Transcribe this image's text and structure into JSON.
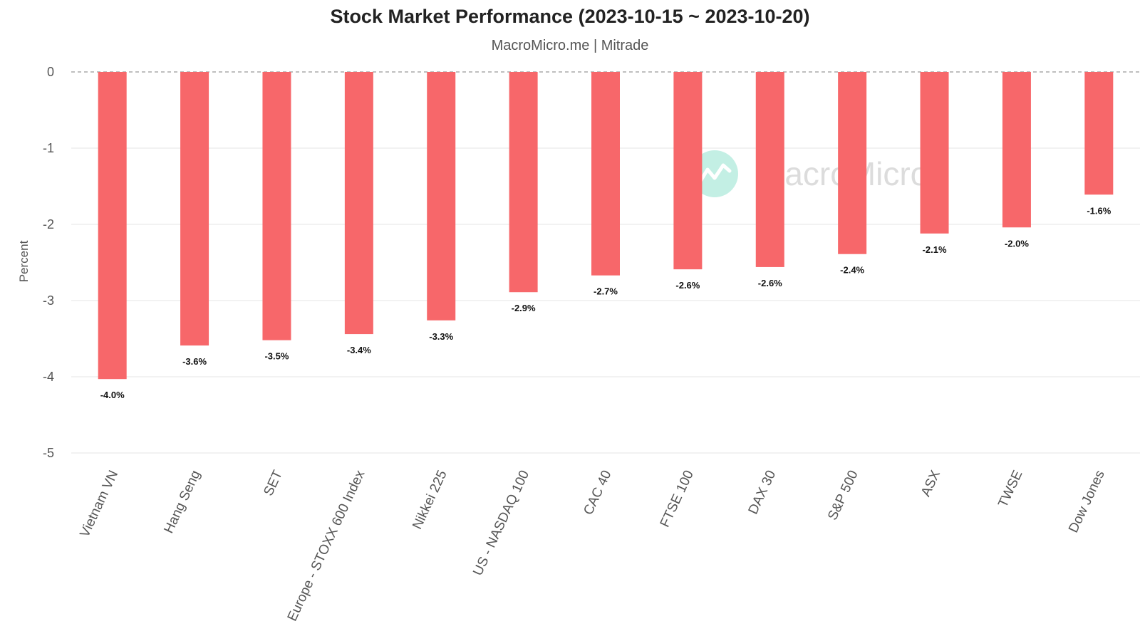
{
  "colors": {
    "bar": "#f7676a",
    "grid": "#e6e6e6",
    "zero_line": "#999999",
    "watermark_circle": "#bdeee2"
  },
  "watermark": {
    "text": "MacroMicro",
    "icon": "trend-chart-icon"
  },
  "chart_data": {
    "type": "bar",
    "title": "Stock Market Performance (2023-10-15 ~ 2023-10-20)",
    "subtitle": "MacroMicro.me | Mitrade",
    "xlabel": "",
    "ylabel": "Percent",
    "ylim": [
      -5,
      0
    ],
    "yticks": [
      "0",
      "-1",
      "-2",
      "-3",
      "-4",
      "-5"
    ],
    "grid": true,
    "categories": [
      "Vietnam VN",
      "Hang Seng",
      "SET",
      "Europe - STOXX 600 Index",
      "Nikkei 225",
      "US - NASDAQ 100",
      "CAC 40",
      "FTSE 100",
      "DAX 30",
      "S&P 500",
      "ASX",
      "TWSE",
      "Dow Jones"
    ],
    "values": [
      -4.03,
      -3.59,
      -3.52,
      -3.44,
      -3.26,
      -2.89,
      -2.67,
      -2.59,
      -2.56,
      -2.39,
      -2.12,
      -2.04,
      -1.61
    ],
    "data_labels": [
      "-4.0%",
      "-3.6%",
      "-3.5%",
      "-3.4%",
      "-3.3%",
      "-2.9%",
      "-2.7%",
      "-2.6%",
      "-2.6%",
      "-2.4%",
      "-2.1%",
      "-2.0%",
      "-1.6%"
    ]
  }
}
